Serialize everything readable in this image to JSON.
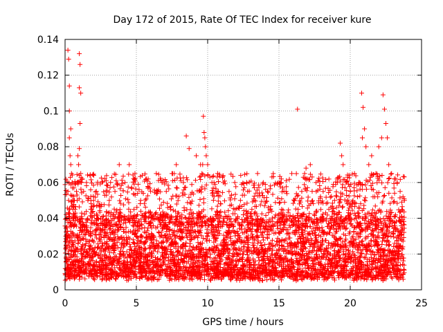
{
  "chart_data": {
    "type": "scatter",
    "title": "Day 172 of 2015, Rate Of TEC Index for receiver kure",
    "xlabel": "GPS time / hours",
    "ylabel": "ROTI / TECUs",
    "xlim": [
      0,
      25
    ],
    "ylim": [
      0,
      0.14
    ],
    "xticks": [
      0,
      5,
      10,
      15,
      20,
      25
    ],
    "xtick_labels": [
      "0",
      "5",
      "10",
      "15",
      "20",
      "25"
    ],
    "yticks": [
      0,
      0.02,
      0.04,
      0.06,
      0.08,
      0.1,
      0.12,
      0.14
    ],
    "ytick_labels": [
      "0",
      "0.02",
      "0.04",
      "0.06",
      "0.08",
      "0.1",
      "0.12",
      "0.14"
    ],
    "grid": true,
    "marker": "+",
    "series": [
      {
        "name": "ROTI",
        "color": "#ff0000",
        "x": [
          0.2,
          0.25,
          0.3,
          0.3,
          0.4,
          0.3,
          0.35,
          0.4,
          0.45,
          0.5,
          0.2,
          0.25,
          0.3,
          0.15,
          0.1,
          0.1,
          0.05,
          1.0,
          1.05,
          1.0,
          1.1,
          1.05,
          1.0,
          0.9,
          0.95,
          1.1,
          1.15,
          0.8,
          0.85,
          0.7,
          0.6,
          0.55,
          1.2,
          1.3,
          1.5,
          1.6,
          1.8,
          2.0,
          2.2,
          2.6,
          3.1,
          3.5,
          3.8,
          4.2,
          4.5,
          4.9,
          5.3,
          5.7,
          6.0,
          6.4,
          6.8,
          7.1,
          7.5,
          7.8,
          8.3,
          8.5,
          8.7,
          9.2,
          9.5,
          9.7,
          9.75,
          9.8,
          9.85,
          9.9,
          9.65,
          9.6,
          10.0,
          10.3,
          10.7,
          11.1,
          11.5,
          11.9,
          12.3,
          12.8,
          13.1,
          13.5,
          13.9,
          14.2,
          14.6,
          15.1,
          15.5,
          15.9,
          16.3,
          16.6,
          16.8,
          16.9,
          17.0,
          17.2,
          17.6,
          18.1,
          18.5,
          18.9,
          19.1,
          19.3,
          19.4,
          19.5,
          19.7,
          20.0,
          20.3,
          20.6,
          20.8,
          20.9,
          21.0,
          20.85,
          21.1,
          21.3,
          21.5,
          21.8,
          22.0,
          22.2,
          22.3,
          22.4,
          22.5,
          22.6,
          22.7,
          22.9,
          23.1,
          23.3,
          23.5,
          23.7,
          23.8
        ],
        "y": [
          0.134,
          0.129,
          0.114,
          0.1,
          0.09,
          0.085,
          0.075,
          0.07,
          0.065,
          0.06,
          0.055,
          0.05,
          0.045,
          0.04,
          0.035,
          0.03,
          0.03,
          0.132,
          0.126,
          0.113,
          0.11,
          0.093,
          0.079,
          0.075,
          0.07,
          0.065,
          0.06,
          0.055,
          0.05,
          0.045,
          0.05,
          0.045,
          0.062,
          0.055,
          0.06,
          0.05,
          0.045,
          0.05,
          0.055,
          0.06,
          0.05,
          0.055,
          0.07,
          0.06,
          0.07,
          0.065,
          0.05,
          0.062,
          0.055,
          0.065,
          0.06,
          0.055,
          0.065,
          0.07,
          0.06,
          0.086,
          0.079,
          0.075,
          0.07,
          0.097,
          0.088,
          0.085,
          0.08,
          0.075,
          0.07,
          0.065,
          0.07,
          0.06,
          0.065,
          0.06,
          0.055,
          0.06,
          0.05,
          0.055,
          0.045,
          0.065,
          0.06,
          0.055,
          0.065,
          0.06,
          0.055,
          0.065,
          0.101,
          0.055,
          0.065,
          0.068,
          0.062,
          0.07,
          0.06,
          0.055,
          0.045,
          0.05,
          0.06,
          0.082,
          0.075,
          0.07,
          0.06,
          0.055,
          0.065,
          0.06,
          0.11,
          0.102,
          0.09,
          0.085,
          0.08,
          0.07,
          0.075,
          0.065,
          0.08,
          0.085,
          0.109,
          0.101,
          0.093,
          0.085,
          0.07,
          0.065,
          0.062,
          0.06,
          0.055,
          0.052,
          0.05
        ]
      }
    ],
    "dense_band": {
      "ymin": 0.005,
      "ymax": 0.04,
      "xmin": 0,
      "xmax": 23.8
    }
  }
}
